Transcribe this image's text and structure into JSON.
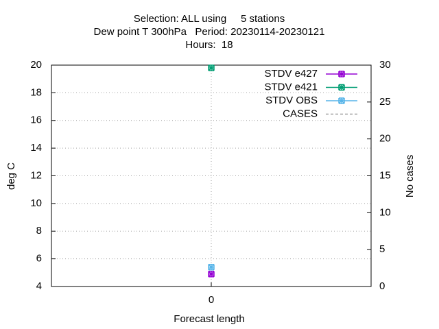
{
  "chart_data": {
    "type": "line",
    "title": [
      "Selection: ALL using     5 stations",
      "Dew point T 300hPa   Period: 20230114-20230121",
      "Hours:  18"
    ],
    "x_label": "Forecast length",
    "y_label": "deg C",
    "y2_label": "No cases",
    "x": [
      0
    ],
    "xlim": [
      -1,
      1
    ],
    "xticks": [
      0
    ],
    "ylim": [
      4,
      20
    ],
    "yticks": [
      4,
      6,
      8,
      10,
      12,
      14,
      16,
      18,
      20
    ],
    "y2lim": [
      0,
      30
    ],
    "y2ticks": [
      0,
      5,
      10,
      15,
      20,
      25,
      30
    ],
    "grid": true,
    "legend": "top-right",
    "series": [
      {
        "name": "STDV e427",
        "color": "#9400d3",
        "values": [
          4.9
        ]
      },
      {
        "name": "STDV e421",
        "color": "#009e73",
        "values": [
          19.8
        ]
      },
      {
        "name": "STDV OBS",
        "color": "#56b4e9",
        "values": [
          5.4
        ]
      },
      {
        "name": "CASES",
        "color": "#a0a0a0",
        "values": [
          null
        ],
        "axis": "y2",
        "dashed": true
      }
    ]
  }
}
